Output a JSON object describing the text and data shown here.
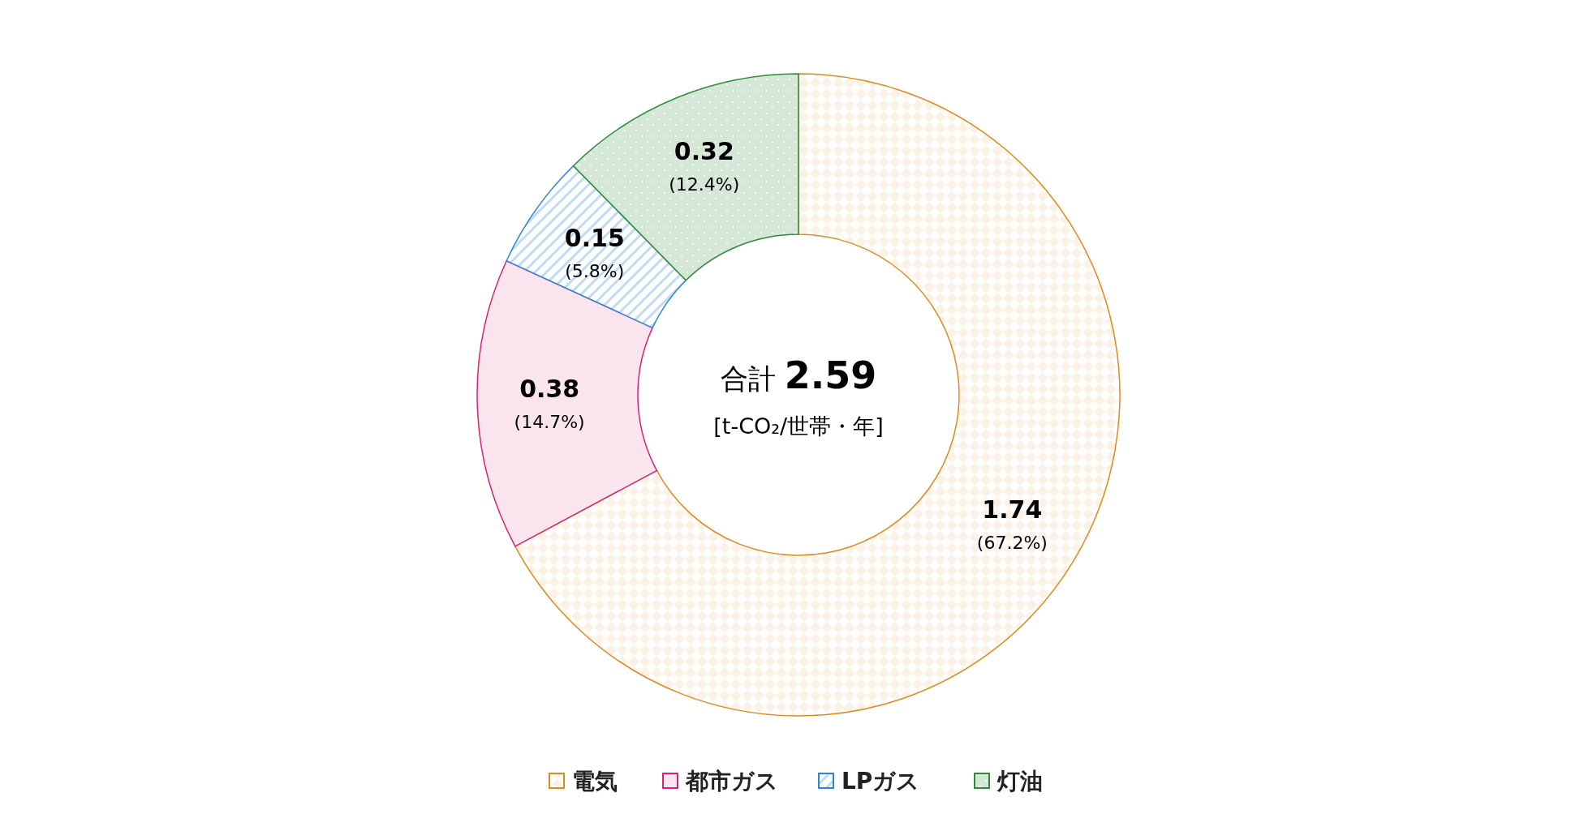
{
  "chart_data": {
    "type": "donut",
    "categories": [
      "電気",
      "都市ガス",
      "LPガス",
      "灯油"
    ],
    "values": [
      1.74,
      0.38,
      0.15,
      0.32
    ],
    "colors": [
      "#e08a1e",
      "#d8246e",
      "#2e86d6",
      "#2e8b3a"
    ],
    "value_labels": [
      "1.74 (67.2%)",
      "0.38 (14.7%)",
      "0.15 (5.8%)",
      "0.32 (12.4%)"
    ],
    "annotations": [
      "合計",
      "2.59",
      "[t-CO₂/世帯・年]"
    ],
    "legend": "bottom"
  }
}
